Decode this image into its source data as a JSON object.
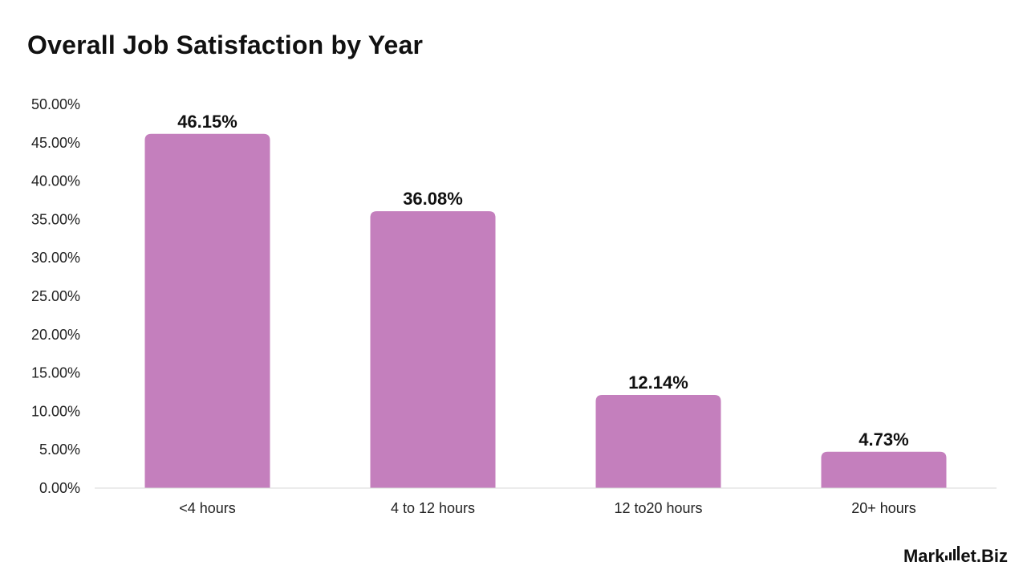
{
  "chart_data": {
    "type": "bar",
    "title": "Overall Job Satisfaction by Year",
    "categories": [
      "<4 hours",
      "4 to 12 hours",
      "12 to20 hours",
      "20+ hours"
    ],
    "values": [
      46.15,
      36.08,
      12.14,
      4.73
    ],
    "data_labels": [
      "46.15%",
      "36.08%",
      "12.14%",
      "4.73%"
    ],
    "ylim": [
      0,
      50
    ],
    "y_ticks": [
      "0.00%",
      "5.00%",
      "10.00%",
      "15.00%",
      "20.00%",
      "25.00%",
      "30.00%",
      "35.00%",
      "40.00%",
      "45.00%",
      "50.00%"
    ],
    "xlabel": "",
    "ylabel": "",
    "grid": false,
    "bar_color": "#C47FBD",
    "legend": "none"
  },
  "branding": {
    "logo_prefix": "Mark",
    "logo_middle": "et",
    "logo_suffix": ".Biz"
  }
}
